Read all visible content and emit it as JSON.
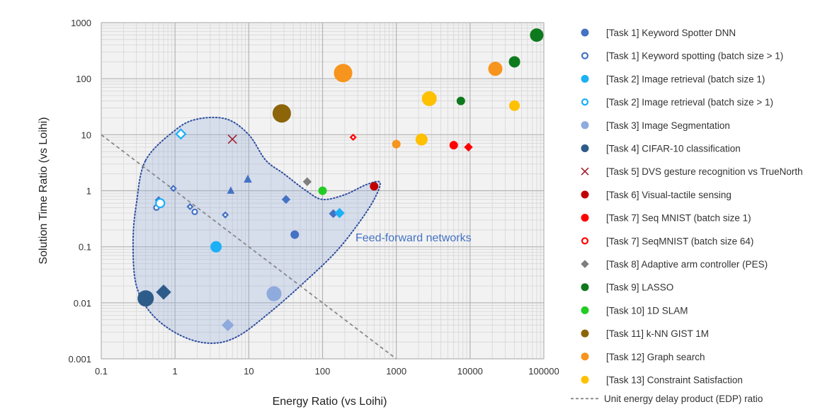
{
  "chart_data": {
    "type": "scatter",
    "xlabel": "Energy Ratio (vs Loihi)",
    "ylabel": "Solution Time Ratio (vs Loihi)",
    "xscale": "log",
    "yscale": "log",
    "xlim": [
      0.1,
      100000
    ],
    "ylim": [
      0.001,
      1000
    ],
    "grid": true,
    "legend_position": "right",
    "x_tick_labels": [
      "0.1",
      "1",
      "10",
      "100",
      "1000",
      "10000",
      "100000"
    ],
    "y_tick_labels": [
      "0.001",
      "0.01",
      "0.1",
      "1",
      "10",
      "100",
      "1000"
    ],
    "annotation": "Feed-forward networks",
    "reference_line": {
      "name": "Unit energy delay product (EDP) ratio",
      "color": "#888888",
      "style": "dashed"
    },
    "series": [
      {
        "name": "[Task 1] Keyword Spotter DNN",
        "color": "#4472C4",
        "marker": "circle",
        "filled": true,
        "points": [
          {
            "x": 42,
            "y": 0.165,
            "shape": "circle",
            "size": 11
          },
          {
            "x": 5.7,
            "y": 1.0,
            "shape": "triangle",
            "size": 10
          },
          {
            "x": 9.7,
            "y": 1.6,
            "shape": "triangle",
            "size": 11
          },
          {
            "x": 32,
            "y": 0.7,
            "shape": "diamond",
            "size": 11
          },
          {
            "x": 140,
            "y": 0.39,
            "shape": "diamond",
            "size": 11
          }
        ]
      },
      {
        "name": "[Task 1] Keyword spotting (batch size > 1)",
        "color": "#4472C4",
        "marker": "circle",
        "filled": false,
        "points": [
          {
            "x": 0.56,
            "y": 0.5,
            "shape": "circle",
            "size": 9
          },
          {
            "x": 1.85,
            "y": 0.42,
            "shape": "circle",
            "size": 9
          },
          {
            "x": 0.6,
            "y": 0.68,
            "shape": "diamond",
            "size": 10
          },
          {
            "x": 0.95,
            "y": 1.1,
            "shape": "diamond",
            "size": 9
          },
          {
            "x": 1.6,
            "y": 0.52,
            "shape": "diamond",
            "size": 9
          },
          {
            "x": 4.8,
            "y": 0.37,
            "shape": "diamond",
            "size": 9
          }
        ]
      },
      {
        "name": "[Task 2] Image retrieval (batch size 1)",
        "color": "#1CB0F6",
        "marker": "circle",
        "filled": true,
        "points": [
          {
            "x": 3.6,
            "y": 0.1,
            "shape": "circle",
            "size": 15
          },
          {
            "x": 170,
            "y": 0.4,
            "shape": "diamond",
            "size": 13
          }
        ]
      },
      {
        "name": "[Task 2] Image retrieval (batch size > 1)",
        "color": "#1CB0F6",
        "marker": "circle",
        "filled": false,
        "points": [
          {
            "x": 0.63,
            "y": 0.6,
            "shape": "circle",
            "size": 14
          },
          {
            "x": 1.2,
            "y": 10.3,
            "shape": "diamond",
            "size": 15
          }
        ]
      },
      {
        "name": "[Task 3] Image Segmentation",
        "color": "#8FAADC",
        "marker": "circle",
        "filled": true,
        "points": [
          {
            "x": 22,
            "y": 0.0145,
            "shape": "circle",
            "size": 20
          },
          {
            "x": 5.2,
            "y": 0.004,
            "shape": "diamond",
            "size": 16
          }
        ]
      },
      {
        "name": "[Task 4] CIFAR-10 classification",
        "color": "#2E5C8A",
        "marker": "circle",
        "filled": true,
        "points": [
          {
            "x": 0.4,
            "y": 0.012,
            "shape": "circle",
            "size": 22
          },
          {
            "x": 0.7,
            "y": 0.0155,
            "shape": "diamond",
            "size": 20
          }
        ]
      },
      {
        "name": "[Task 5] DVS gesture recognition vs TrueNorth",
        "color": "#A0202E",
        "marker": "x",
        "filled": true,
        "points": [
          {
            "x": 6.0,
            "y": 8.3,
            "shape": "x",
            "size": 12
          }
        ]
      },
      {
        "name": "[Task 6] Visual-tactile sensing",
        "color": "#C00000",
        "marker": "circle",
        "filled": true,
        "points": [
          {
            "x": 500,
            "y": 1.2,
            "shape": "circle",
            "size": 11
          }
        ]
      },
      {
        "name": "[Task 7] Seq MNIST (batch size 1)",
        "color": "#FF0000",
        "marker": "circle",
        "filled": true,
        "points": [
          {
            "x": 6000,
            "y": 6.5,
            "shape": "circle",
            "size": 11
          },
          {
            "x": 9500,
            "y": 6.0,
            "shape": "diamond",
            "size": 11
          }
        ]
      },
      {
        "name": "[Task 7] SeqMNIST (batch size 64)",
        "color": "#FF0000",
        "marker": "circle",
        "filled": false,
        "points": [
          {
            "x": 260,
            "y": 9.0,
            "shape": "diamond",
            "size": 9
          }
        ]
      },
      {
        "name": "[Task 8] Adaptive arm controller (PES)",
        "color": "#7F7F7F",
        "marker": "diamond",
        "filled": true,
        "points": [
          {
            "x": 62,
            "y": 1.45,
            "shape": "diamond",
            "size": 11
          }
        ]
      },
      {
        "name": "[Task 9] LASSO",
        "color": "#0E7A1E",
        "marker": "circle",
        "filled": true,
        "points": [
          {
            "x": 80000,
            "y": 600,
            "shape": "circle",
            "size": 18
          },
          {
            "x": 40000,
            "y": 200,
            "shape": "circle",
            "size": 15
          },
          {
            "x": 7500,
            "y": 40,
            "shape": "circle",
            "size": 11
          }
        ]
      },
      {
        "name": "[Task 10] 1D SLAM",
        "color": "#22CC22",
        "marker": "circle",
        "filled": true,
        "points": [
          {
            "x": 100,
            "y": 1.0,
            "shape": "circle",
            "size": 11
          }
        ]
      },
      {
        "name": "[Task 11] k-NN GIST 1M",
        "color": "#8B6508",
        "marker": "circle",
        "filled": true,
        "points": [
          {
            "x": 28,
            "y": 24,
            "shape": "circle",
            "size": 25
          }
        ]
      },
      {
        "name": "[Task 12] Graph search",
        "color": "#F7941D",
        "marker": "circle",
        "filled": true,
        "points": [
          {
            "x": 190,
            "y": 126,
            "shape": "circle",
            "size": 25
          },
          {
            "x": 22000,
            "y": 150,
            "shape": "circle",
            "size": 19
          },
          {
            "x": 1000,
            "y": 6.8,
            "shape": "circle",
            "size": 11
          }
        ]
      },
      {
        "name": "[Task 13] Constraint Satisfaction",
        "color": "#FFC000",
        "marker": "circle",
        "filled": true,
        "points": [
          {
            "x": 2800,
            "y": 44,
            "shape": "circle",
            "size": 20
          },
          {
            "x": 40000,
            "y": 33,
            "shape": "circle",
            "size": 14
          },
          {
            "x": 2200,
            "y": 8.2,
            "shape": "circle",
            "size": 16
          }
        ]
      }
    ]
  }
}
